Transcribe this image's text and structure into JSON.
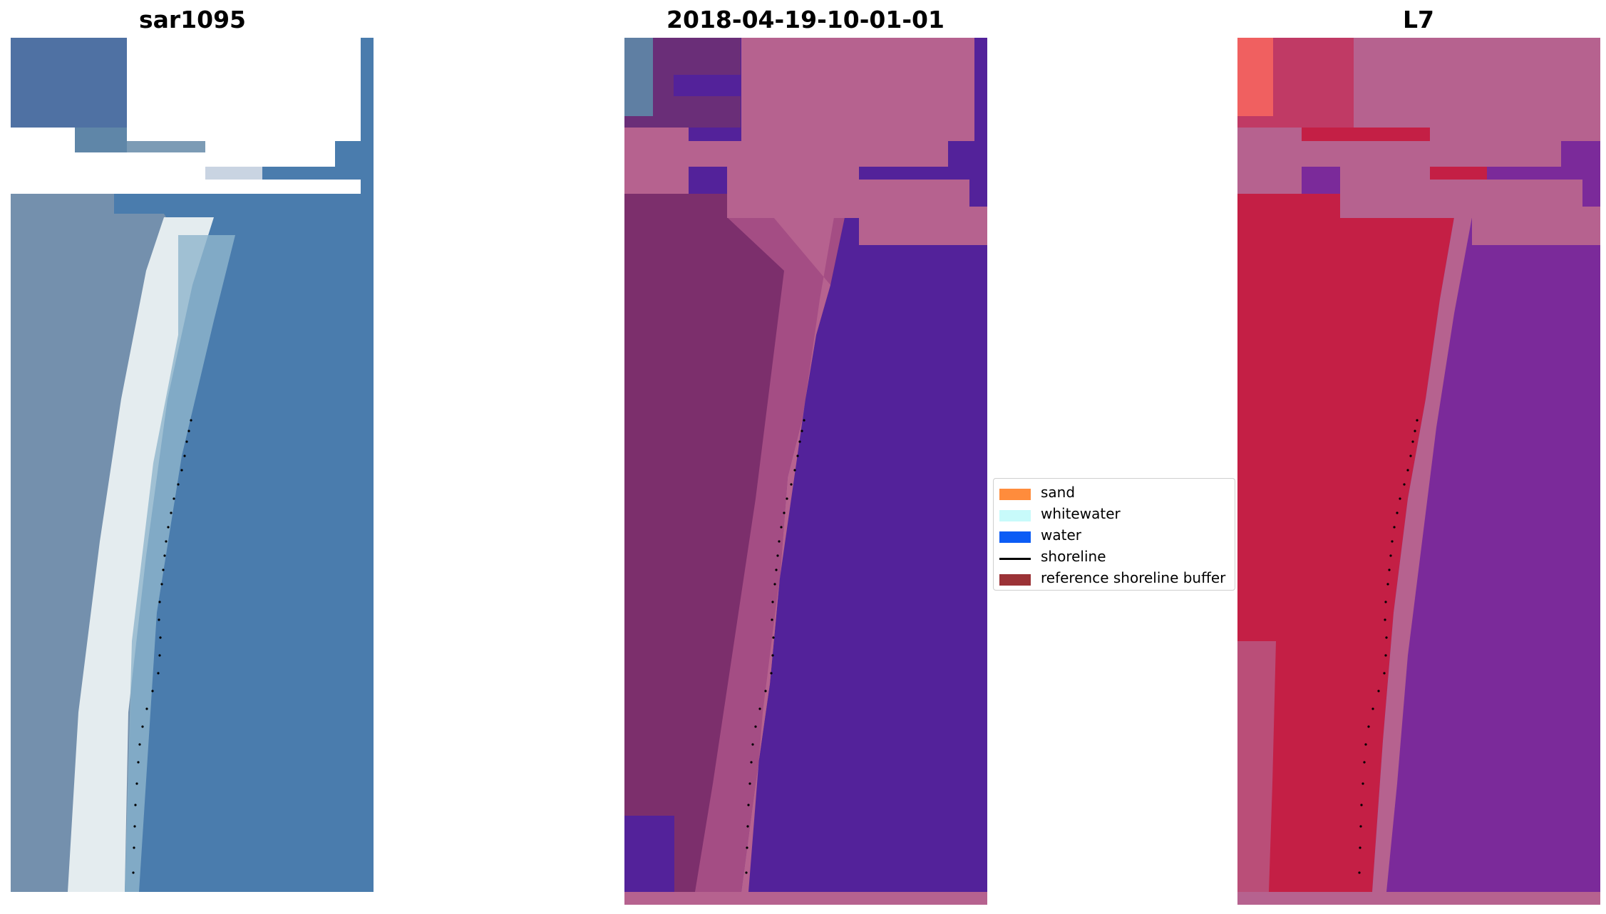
{
  "panels": [
    {
      "title": "sar1095"
    },
    {
      "title": "2018-04-19-10-01-01"
    },
    {
      "title": "L7"
    }
  ],
  "legend": {
    "items": [
      {
        "label": "sand",
        "color": "#ff8c3c",
        "kind": "patch"
      },
      {
        "label": "whitewater",
        "color": "#c8fafa",
        "kind": "patch"
      },
      {
        "label": "water",
        "color": "#0b5cf5",
        "kind": "patch"
      },
      {
        "label": "shoreline",
        "color": "#000000",
        "kind": "line"
      },
      {
        "label": "reference shoreline buffer",
        "color": "#9b3236",
        "kind": "patch"
      }
    ]
  },
  "colors": {
    "rgb_water": "#4478ab",
    "rgb_sand": "#6f8fae",
    "rgb_whitewater": "#eef3f0",
    "classified_water": "#53229a",
    "classified_land": "#7c2f6c",
    "classified_buffer": "#b6628f",
    "l7_sand": "#c41f45",
    "l7_water": "#7b2a9a",
    "l7_buffer": "#b6628f"
  }
}
